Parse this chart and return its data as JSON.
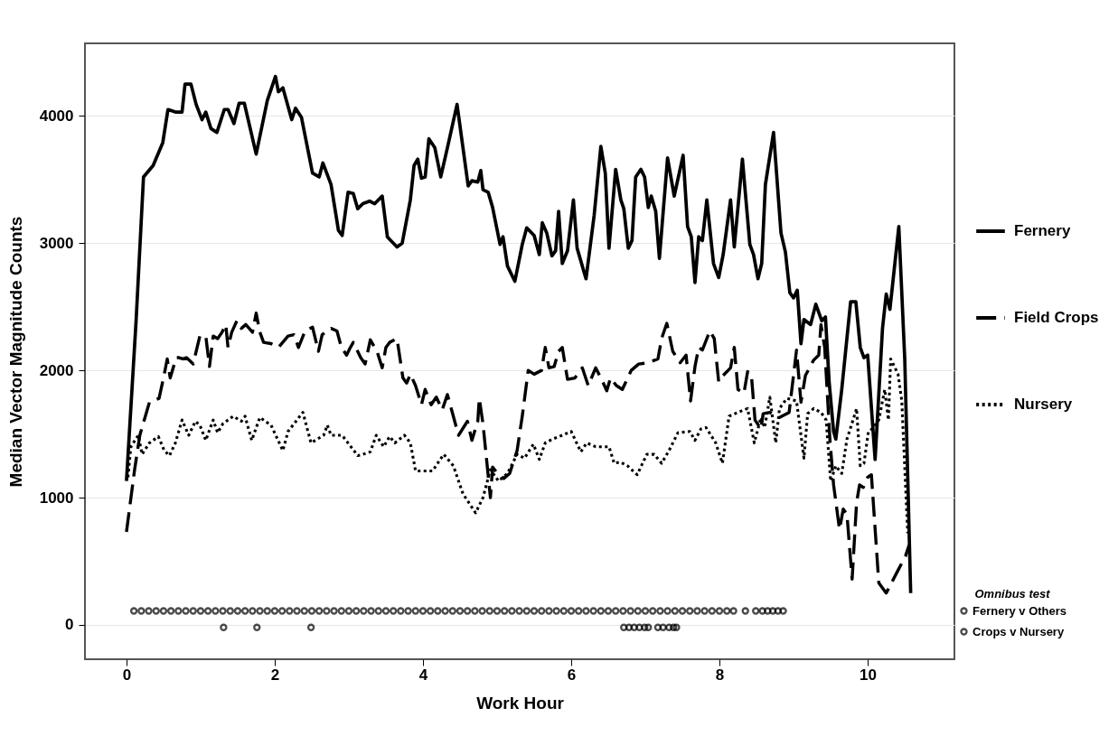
{
  "chart_data": {
    "type": "line",
    "xlabel": "Work Hour",
    "ylabel": "Median Vector Magnitude Counts",
    "legend_title": "Omnibus test",
    "xlim": [
      -0.56,
      11.17
    ],
    "ylim": [
      -270,
      4570
    ],
    "xticks": [
      0,
      2,
      4,
      6,
      8,
      10
    ],
    "yticks": [
      0,
      1000,
      2000,
      3000,
      4000
    ],
    "grid": "y",
    "legend": "right",
    "series": [
      {
        "name": "Fernery",
        "line_style": "solid",
        "color": "#000000",
        "x": [
          0,
          0.13,
          0.23,
          0.36,
          0.49,
          0.56,
          0.66,
          0.75,
          0.79,
          0.87,
          0.94,
          1.02,
          1.07,
          1.14,
          1.22,
          1.32,
          1.37,
          1.45,
          1.52,
          1.59,
          1.75,
          1.9,
          2.01,
          2.05,
          2.11,
          2.23,
          2.28,
          2.36,
          2.51,
          2.6,
          2.65,
          2.76,
          2.86,
          2.91,
          2.99,
          3.06,
          3.12,
          3.19,
          3.28,
          3.35,
          3.45,
          3.52,
          3.55,
          3.65,
          3.72,
          3.83,
          3.88,
          3.93,
          3.98,
          4.03,
          4.08,
          4.16,
          4.24,
          4.33,
          4.46,
          4.61,
          4.66,
          4.74,
          4.78,
          4.81,
          4.88,
          4.94,
          5.04,
          5.08,
          5.14,
          5.24,
          5.34,
          5.4,
          5.5,
          5.57,
          5.61,
          5.67,
          5.74,
          5.79,
          5.83,
          5.88,
          5.95,
          6.03,
          6.08,
          6.2,
          6.31,
          6.4,
          6.46,
          6.51,
          6.6,
          6.67,
          6.71,
          6.77,
          6.82,
          6.87,
          6.94,
          6.99,
          7.04,
          7.08,
          7.14,
          7.19,
          7.3,
          7.39,
          7.51,
          7.57,
          7.62,
          7.67,
          7.72,
          7.77,
          7.83,
          7.92,
          7.99,
          8.05,
          8.15,
          8.2,
          8.31,
          8.41,
          8.46,
          8.52,
          8.57,
          8.62,
          8.73,
          8.83,
          8.89,
          8.95,
          9.0,
          9.05,
          9.1,
          9.14,
          9.23,
          9.3,
          9.38,
          9.43,
          9.48,
          9.54,
          9.57,
          9.65,
          9.77,
          9.84,
          9.9,
          9.95,
          10.0,
          10.1,
          10.2,
          10.25,
          10.3,
          10.42,
          10.5,
          10.58
        ],
        "values": [
          1130,
          2390,
          3520,
          3610,
          3790,
          4050,
          4030,
          4030,
          4250,
          4250,
          4090,
          3970,
          4030,
          3900,
          3870,
          4050,
          4050,
          3940,
          4100,
          4100,
          3700,
          4120,
          4310,
          4190,
          4220,
          3970,
          4060,
          3990,
          3550,
          3520,
          3630,
          3460,
          3100,
          3060,
          3400,
          3390,
          3270,
          3310,
          3330,
          3310,
          3370,
          3050,
          3030,
          2970,
          3000,
          3340,
          3610,
          3660,
          3510,
          3520,
          3820,
          3750,
          3520,
          3750,
          4090,
          3450,
          3490,
          3480,
          3570,
          3420,
          3400,
          3280,
          2990,
          3050,
          2820,
          2700,
          2990,
          3120,
          3060,
          2910,
          3160,
          3080,
          2900,
          2940,
          3250,
          2840,
          2940,
          3340,
          2960,
          2720,
          3220,
          3760,
          3550,
          2960,
          3580,
          3340,
          3270,
          2960,
          3020,
          3520,
          3580,
          3520,
          3280,
          3370,
          3250,
          2880,
          3670,
          3370,
          3690,
          3130,
          3050,
          2690,
          3050,
          3020,
          3340,
          2840,
          2730,
          2910,
          3340,
          2970,
          3660,
          2990,
          2910,
          2720,
          2840,
          3460,
          3870,
          3080,
          2930,
          2610,
          2570,
          2630,
          2210,
          2400,
          2360,
          2520,
          2390,
          2420,
          1910,
          1520,
          1460,
          1850,
          2540,
          2540,
          2180,
          2100,
          2120,
          1300,
          2330,
          2600,
          2480,
          3130,
          2090,
          250
        ]
      },
      {
        "name": "Field Crops",
        "line_style": "dashed",
        "color": "#000000",
        "x": [
          0,
          0.11,
          0.18,
          0.31,
          0.44,
          0.51,
          0.55,
          0.59,
          0.67,
          0.71,
          0.76,
          0.81,
          0.9,
          0.99,
          1.07,
          1.12,
          1.17,
          1.23,
          1.29,
          1.34,
          1.37,
          1.42,
          1.49,
          1.55,
          1.61,
          1.7,
          1.75,
          1.8,
          1.85,
          1.95,
          2.05,
          2.18,
          2.26,
          2.32,
          2.41,
          2.51,
          2.59,
          2.64,
          2.76,
          2.84,
          2.9,
          2.97,
          3.02,
          3.06,
          3.16,
          3.22,
          3.29,
          3.38,
          3.45,
          3.5,
          3.55,
          3.65,
          3.73,
          3.78,
          3.83,
          3.9,
          3.98,
          4.03,
          4.11,
          4.18,
          4.26,
          4.33,
          4.48,
          4.6,
          4.66,
          4.74,
          4.76,
          4.81,
          4.91,
          4.94,
          5.02,
          5.09,
          5.17,
          5.27,
          5.34,
          5.42,
          5.5,
          5.6,
          5.65,
          5.7,
          5.77,
          5.83,
          5.88,
          5.95,
          6.05,
          6.15,
          6.23,
          6.33,
          6.41,
          6.48,
          6.53,
          6.61,
          6.69,
          6.81,
          6.91,
          7.04,
          7.17,
          7.22,
          7.29,
          7.37,
          7.47,
          7.55,
          7.61,
          7.67,
          7.72,
          7.77,
          7.87,
          7.93,
          7.99,
          8.05,
          8.15,
          8.2,
          8.25,
          8.33,
          8.38,
          8.43,
          8.48,
          8.56,
          8.59,
          8.68,
          8.81,
          8.94,
          9.04,
          9.1,
          9.16,
          9.27,
          9.34,
          9.37,
          9.42,
          9.49,
          9.54,
          9.62,
          9.67,
          9.72,
          9.79,
          9.85,
          9.89,
          9.94,
          10.0,
          10.05,
          10.15,
          10.25,
          10.41,
          10.51,
          10.56
        ],
        "values": [
          730,
          1220,
          1490,
          1750,
          1780,
          1970,
          2090,
          1940,
          2100,
          2100,
          2090,
          2100,
          2050,
          2270,
          2270,
          2030,
          2270,
          2250,
          2300,
          2360,
          2180,
          2300,
          2390,
          2330,
          2360,
          2300,
          2450,
          2300,
          2220,
          2210,
          2180,
          2270,
          2280,
          2180,
          2310,
          2340,
          2150,
          2280,
          2330,
          2310,
          2180,
          2120,
          2180,
          2220,
          2100,
          2050,
          2240,
          2150,
          2020,
          2180,
          2220,
          2250,
          1940,
          1900,
          1970,
          1880,
          1730,
          1850,
          1730,
          1790,
          1690,
          1810,
          1490,
          1600,
          1450,
          1600,
          1780,
          1580,
          1000,
          1240,
          1180,
          1150,
          1190,
          1370,
          1640,
          2000,
          1970,
          2000,
          2180,
          2020,
          2030,
          2150,
          2180,
          1930,
          1940,
          2020,
          1880,
          2020,
          1930,
          1840,
          1940,
          1880,
          1850,
          2000,
          2050,
          2060,
          2090,
          2250,
          2370,
          2150,
          2060,
          2120,
          1760,
          2030,
          2180,
          2160,
          2310,
          2250,
          1910,
          1960,
          2020,
          2180,
          1850,
          1820,
          1990,
          1970,
          1610,
          1540,
          1660,
          1670,
          1630,
          1670,
          2160,
          1750,
          1960,
          2080,
          2120,
          2360,
          2180,
          1460,
          1100,
          750,
          910,
          870,
          360,
          960,
          1100,
          1080,
          1160,
          1180,
          330,
          250,
          430,
          540,
          630
        ]
      },
      {
        "name": "Nursery",
        "line_style": "dotted",
        "color": "#000000",
        "x": [
          0.02,
          0.06,
          0.16,
          0.21,
          0.31,
          0.43,
          0.51,
          0.58,
          0.66,
          0.75,
          0.84,
          0.93,
          0.99,
          1.07,
          1.17,
          1.23,
          1.3,
          1.37,
          1.44,
          1.55,
          1.6,
          1.69,
          1.8,
          1.95,
          2.11,
          2.18,
          2.38,
          2.49,
          2.66,
          2.71,
          2.76,
          2.91,
          3.12,
          3.19,
          3.29,
          3.37,
          3.47,
          3.55,
          3.62,
          3.75,
          3.83,
          3.9,
          4.13,
          4.28,
          4.41,
          4.54,
          4.71,
          4.81,
          4.91,
          5.02,
          5.14,
          5.27,
          5.37,
          5.49,
          5.57,
          5.65,
          5.75,
          5.88,
          6.0,
          6.13,
          6.21,
          6.33,
          6.51,
          6.58,
          6.66,
          6.76,
          6.89,
          7.02,
          7.12,
          7.22,
          7.32,
          7.44,
          7.6,
          7.67,
          7.75,
          7.82,
          7.95,
          8.04,
          8.13,
          8.33,
          8.38,
          8.47,
          8.56,
          8.61,
          8.68,
          8.76,
          8.81,
          8.91,
          9.04,
          9.14,
          9.19,
          9.27,
          9.37,
          9.44,
          9.5,
          9.57,
          9.65,
          9.72,
          9.77,
          9.85,
          9.9,
          9.95,
          10.01,
          10.06,
          10.15,
          10.23,
          10.28,
          10.31,
          10.41,
          10.46,
          10.54
        ],
        "values": [
          1160,
          1400,
          1490,
          1340,
          1430,
          1480,
          1370,
          1330,
          1430,
          1610,
          1490,
          1600,
          1570,
          1450,
          1610,
          1510,
          1580,
          1610,
          1640,
          1600,
          1640,
          1450,
          1630,
          1570,
          1370,
          1520,
          1670,
          1430,
          1490,
          1570,
          1490,
          1490,
          1330,
          1340,
          1360,
          1490,
          1400,
          1480,
          1430,
          1490,
          1430,
          1210,
          1210,
          1340,
          1250,
          1030,
          880,
          1000,
          1220,
          1130,
          1190,
          1340,
          1310,
          1420,
          1300,
          1430,
          1460,
          1490,
          1520,
          1360,
          1430,
          1400,
          1400,
          1270,
          1280,
          1250,
          1180,
          1340,
          1340,
          1270,
          1370,
          1510,
          1520,
          1450,
          1540,
          1550,
          1430,
          1270,
          1640,
          1690,
          1700,
          1430,
          1630,
          1550,
          1790,
          1430,
          1700,
          1780,
          1760,
          1310,
          1660,
          1700,
          1670,
          1610,
          1130,
          1250,
          1190,
          1460,
          1550,
          1700,
          1250,
          1270,
          1520,
          1540,
          1610,
          1850,
          1610,
          2090,
          1970,
          1760,
          720
        ]
      },
      {
        "name": "Fernery v Others",
        "type": "scatter",
        "marker": "circle",
        "color": "#000000",
        "x": [
          0.1,
          0.2,
          0.3,
          0.4,
          0.5,
          0.6,
          0.7,
          0.8,
          0.9,
          1.0,
          1.1,
          1.2,
          1.3,
          1.4,
          1.5,
          1.6,
          1.7,
          1.8,
          1.9,
          2.0,
          2.1,
          2.2,
          2.3,
          2.4,
          2.5,
          2.6,
          2.7,
          2.8,
          2.9,
          3.0,
          3.1,
          3.2,
          3.3,
          3.4,
          3.5,
          3.6,
          3.7,
          3.8,
          3.9,
          4.0,
          4.1,
          4.2,
          4.3,
          4.4,
          4.5,
          4.6,
          4.7,
          4.8,
          4.9,
          5.0,
          5.1,
          5.2,
          5.3,
          5.4,
          5.5,
          5.6,
          5.7,
          5.8,
          5.9,
          6.0,
          6.1,
          6.2,
          6.3,
          6.4,
          6.5,
          6.6,
          6.7,
          6.8,
          6.9,
          7.0,
          7.1,
          7.2,
          7.3,
          7.4,
          7.5,
          7.6,
          7.7,
          7.8,
          7.9,
          8.0,
          8.1,
          8.19,
          8.35,
          8.49,
          8.58,
          8.65,
          8.72,
          8.79,
          8.86
        ],
        "values": [
          110,
          110,
          110,
          110,
          110,
          110,
          110,
          110,
          110,
          110,
          110,
          110,
          110,
          110,
          110,
          110,
          110,
          110,
          110,
          110,
          110,
          110,
          110,
          110,
          110,
          110,
          110,
          110,
          110,
          110,
          110,
          110,
          110,
          110,
          110,
          110,
          110,
          110,
          110,
          110,
          110,
          110,
          110,
          110,
          110,
          110,
          110,
          110,
          110,
          110,
          110,
          110,
          110,
          110,
          110,
          110,
          110,
          110,
          110,
          110,
          110,
          110,
          110,
          110,
          110,
          110,
          110,
          110,
          110,
          110,
          110,
          110,
          110,
          110,
          110,
          110,
          110,
          110,
          110,
          110,
          110,
          110,
          110,
          110,
          110,
          110,
          110,
          110,
          110
        ]
      },
      {
        "name": "Crops v Nursery",
        "type": "scatter",
        "marker": "circle",
        "color": "#000000",
        "x": [
          1.31,
          1.76,
          2.49,
          6.71,
          6.78,
          6.85,
          6.92,
          6.99,
          7.04,
          7.17,
          7.24,
          7.32,
          7.38,
          7.42
        ],
        "values": [
          -20,
          -20,
          -20,
          -20,
          -20,
          -20,
          -20,
          -20,
          -20,
          -20,
          -20,
          -20,
          -20,
          -20
        ]
      }
    ]
  }
}
